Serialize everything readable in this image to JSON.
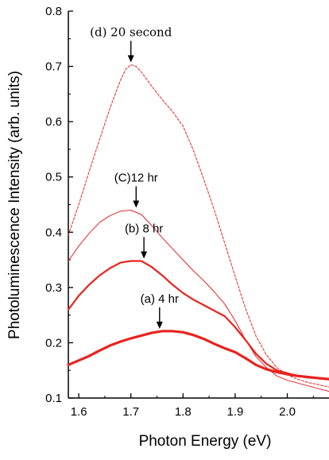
{
  "chart_data": {
    "type": "line",
    "title": "",
    "xlabel": "Photon Energy (eV)",
    "ylabel": "Photoluminescence Intensity (arb. units)",
    "xlim": [
      1.58,
      2.08
    ],
    "ylim": [
      0.1,
      0.8
    ],
    "x_ticks": [
      "1.6",
      "1.7",
      "1.8",
      "1.9",
      "2.0"
    ],
    "y_ticks": [
      "0.1",
      "0.2",
      "0.3",
      "0.4",
      "0.5",
      "0.6",
      "0.7",
      "0.8"
    ],
    "grid": false,
    "legend": "none",
    "series": [
      {
        "name": "(a) 4 hr",
        "color": "#e8231f",
        "style": "thick",
        "points": [
          [
            1.58,
            0.16
          ],
          [
            1.6,
            0.168
          ],
          [
            1.62,
            0.176
          ],
          [
            1.64,
            0.186
          ],
          [
            1.66,
            0.195
          ],
          [
            1.68,
            0.202
          ],
          [
            1.7,
            0.208
          ],
          [
            1.72,
            0.213
          ],
          [
            1.74,
            0.218
          ],
          [
            1.76,
            0.221
          ],
          [
            1.78,
            0.221
          ],
          [
            1.8,
            0.219
          ],
          [
            1.82,
            0.214
          ],
          [
            1.84,
            0.207
          ],
          [
            1.86,
            0.198
          ],
          [
            1.88,
            0.19
          ],
          [
            1.9,
            0.183
          ],
          [
            1.92,
            0.172
          ],
          [
            1.94,
            0.16
          ],
          [
            1.96,
            0.152
          ],
          [
            1.98,
            0.147
          ],
          [
            2.0,
            0.143
          ],
          [
            2.02,
            0.14
          ],
          [
            2.04,
            0.138
          ],
          [
            2.06,
            0.136
          ],
          [
            2.08,
            0.134
          ]
        ]
      },
      {
        "name": "(b) 8 hr",
        "color": "#e8231f",
        "style": "medium",
        "points": [
          [
            1.58,
            0.26
          ],
          [
            1.6,
            0.285
          ],
          [
            1.62,
            0.305
          ],
          [
            1.64,
            0.322
          ],
          [
            1.66,
            0.335
          ],
          [
            1.68,
            0.345
          ],
          [
            1.7,
            0.348
          ],
          [
            1.72,
            0.348
          ],
          [
            1.74,
            0.337
          ],
          [
            1.76,
            0.322
          ],
          [
            1.78,
            0.305
          ],
          [
            1.8,
            0.29
          ],
          [
            1.82,
            0.278
          ],
          [
            1.84,
            0.268
          ],
          [
            1.86,
            0.258
          ],
          [
            1.88,
            0.248
          ],
          [
            1.9,
            0.228
          ],
          [
            1.92,
            0.205
          ],
          [
            1.94,
            0.18
          ],
          [
            1.96,
            0.162
          ],
          [
            1.98,
            0.15
          ],
          [
            2.0,
            0.145
          ],
          [
            2.02,
            0.14
          ],
          [
            2.04,
            0.137
          ],
          [
            2.06,
            0.136
          ],
          [
            2.08,
            0.135
          ]
        ]
      },
      {
        "name": "(C)12 hr",
        "color": "#e8231f",
        "style": "thin",
        "points": [
          [
            1.58,
            0.348
          ],
          [
            1.6,
            0.375
          ],
          [
            1.62,
            0.398
          ],
          [
            1.64,
            0.418
          ],
          [
            1.66,
            0.43
          ],
          [
            1.68,
            0.438
          ],
          [
            1.7,
            0.44
          ],
          [
            1.72,
            0.432
          ],
          [
            1.74,
            0.412
          ],
          [
            1.76,
            0.39
          ],
          [
            1.78,
            0.37
          ],
          [
            1.8,
            0.35
          ],
          [
            1.82,
            0.33
          ],
          [
            1.84,
            0.312
          ],
          [
            1.86,
            0.292
          ],
          [
            1.88,
            0.27
          ],
          [
            1.9,
            0.24
          ],
          [
            1.92,
            0.205
          ],
          [
            1.94,
            0.175
          ],
          [
            1.96,
            0.155
          ],
          [
            1.98,
            0.14
          ],
          [
            2.0,
            0.132
          ],
          [
            2.02,
            0.127
          ],
          [
            2.04,
            0.122
          ],
          [
            2.06,
            0.117
          ],
          [
            2.08,
            0.112
          ]
        ]
      },
      {
        "name": "(d) 20 second",
        "color": "#e8231f",
        "style": "dashed",
        "points": [
          [
            1.58,
            0.395
          ],
          [
            1.6,
            0.45
          ],
          [
            1.62,
            0.51
          ],
          [
            1.64,
            0.568
          ],
          [
            1.66,
            0.625
          ],
          [
            1.68,
            0.675
          ],
          [
            1.69,
            0.695
          ],
          [
            1.7,
            0.703
          ],
          [
            1.71,
            0.7
          ],
          [
            1.72,
            0.69
          ],
          [
            1.74,
            0.664
          ],
          [
            1.76,
            0.64
          ],
          [
            1.78,
            0.618
          ],
          [
            1.8,
            0.592
          ],
          [
            1.82,
            0.548
          ],
          [
            1.84,
            0.495
          ],
          [
            1.86,
            0.44
          ],
          [
            1.88,
            0.38
          ],
          [
            1.9,
            0.32
          ],
          [
            1.92,
            0.262
          ],
          [
            1.94,
            0.212
          ],
          [
            1.96,
            0.178
          ],
          [
            1.98,
            0.155
          ],
          [
            2.0,
            0.142
          ],
          [
            2.02,
            0.134
          ],
          [
            2.04,
            0.128
          ],
          [
            2.06,
            0.124
          ],
          [
            2.08,
            0.12
          ]
        ]
      }
    ],
    "annotations": [
      {
        "label": "(d) 20 second",
        "x": 1.7,
        "y": 0.703,
        "font": "serif"
      },
      {
        "label": "(C)12 hr",
        "x": 1.71,
        "y": 0.44,
        "font": "sans"
      },
      {
        "label": "(b) 8 hr",
        "x": 1.725,
        "y": 0.348,
        "font": "sans"
      },
      {
        "label": "(a) 4 hr",
        "x": 1.755,
        "y": 0.221,
        "font": "sans"
      }
    ]
  }
}
